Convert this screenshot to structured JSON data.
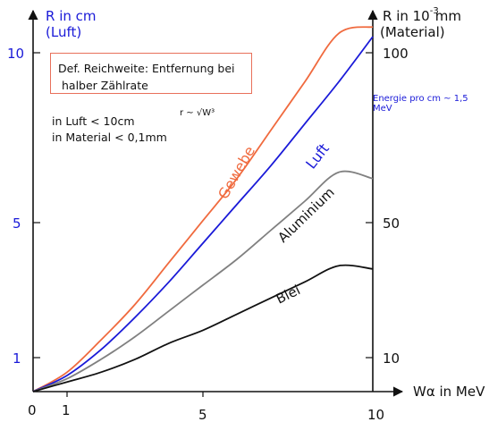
{
  "chart_data": {
    "type": "line",
    "left_axis": {
      "title_line1": "R in cm",
      "title_line2": "(Luft)",
      "ticks": [
        {
          "label": "1",
          "value": 1
        },
        {
          "label": "5",
          "value": 5
        },
        {
          "label": "10",
          "value": 10
        }
      ]
    },
    "right_axis": {
      "title_prefix": "R in 10",
      "title_exp": "-3",
      "title_unit": "mm",
      "title_line2": "(Material)",
      "ticks": [
        {
          "label": "10",
          "value": 10
        },
        {
          "label": "50",
          "value": 50
        },
        {
          "label": "100",
          "value": 100
        }
      ]
    },
    "x_axis": {
      "label": "Wα in MeV",
      "ticks": [
        {
          "label": "0",
          "value": 0
        },
        {
          "label": "1",
          "value": 1
        },
        {
          "label": "5",
          "value": 5
        },
        {
          "label": "10",
          "value": 10
        }
      ],
      "range": [
        0,
        10
      ]
    },
    "series": [
      {
        "name": "Gewebe",
        "color": "#f06a3e",
        "x": [
          0,
          1,
          2,
          3,
          4,
          5,
          6,
          7,
          8,
          9,
          10
        ],
        "y": [
          0,
          0.6,
          1.6,
          2.7,
          4.0,
          5.3,
          6.6,
          8.1,
          9.6,
          11.1,
          11.3
        ]
      },
      {
        "name": "Luft",
        "color": "#1a1ad8",
        "x": [
          0,
          1,
          2,
          3,
          4,
          5,
          6,
          7,
          8,
          9,
          10
        ],
        "y": [
          0,
          0.5,
          1.3,
          2.3,
          3.4,
          4.6,
          5.8,
          7.0,
          8.3,
          9.6,
          11.0
        ]
      },
      {
        "name": "Aluminium",
        "color": "#808080",
        "x": [
          0,
          1,
          2,
          3,
          4,
          5,
          6,
          7,
          8,
          9,
          10
        ],
        "y": [
          0,
          0.4,
          1.0,
          1.7,
          2.5,
          3.3,
          4.1,
          5.0,
          5.9,
          6.8,
          6.6
        ]
      },
      {
        "name": "Blei",
        "color": "#111111",
        "x": [
          0,
          1,
          2,
          3,
          4,
          5,
          6,
          7,
          8,
          9,
          10
        ],
        "y": [
          0,
          0.3,
          0.6,
          1.0,
          1.5,
          1.9,
          2.4,
          2.9,
          3.4,
          3.9,
          3.8
        ]
      }
    ]
  },
  "annotations": {
    "box_line1": "Def. Reichweite: Entfernung bei",
    "box_line2": "halber Zählrate",
    "luft_note": "in Luft < 10cm",
    "material_note": "in Material < 0,1mm",
    "formula": "r ~ √W³",
    "energy_note": "Energie pro cm ~ 1,5 MeV"
  }
}
